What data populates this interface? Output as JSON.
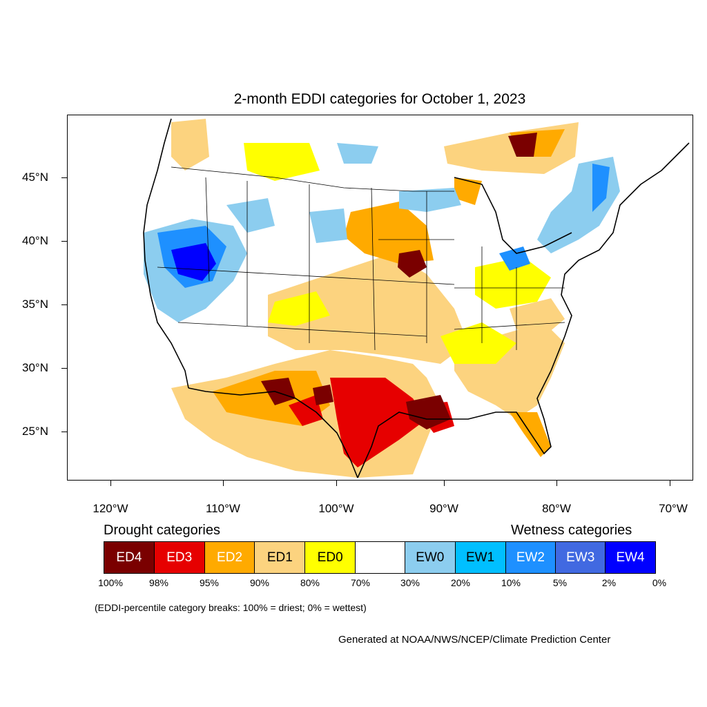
{
  "title": "2-month EDDI categories for October 1, 2023",
  "y_axis_labels": [
    "45°N",
    "40°N",
    "35°N",
    "30°N",
    "25°N"
  ],
  "x_axis_labels": [
    "120°W",
    "110°W",
    "100°W",
    "90°W",
    "80°W",
    "70°W"
  ],
  "legend": {
    "drought_heading": "Drought categories",
    "wetness_heading": "Wetness categories",
    "categories": [
      {
        "label": "ED4",
        "color": "#7a0000"
      },
      {
        "label": "ED3",
        "color": "#e60000"
      },
      {
        "label": "ED2",
        "color": "#ffaa00"
      },
      {
        "label": "ED1",
        "color": "#fcd37f"
      },
      {
        "label": "ED0",
        "color": "#ffff00"
      },
      {
        "label": "",
        "color": "#ffffff"
      },
      {
        "label": "EW0",
        "color": "#8ccdef"
      },
      {
        "label": "EW1",
        "color": "#00bfff"
      },
      {
        "label": "EW2",
        "color": "#1e90ff"
      },
      {
        "label": "EW3",
        "color": "#4169e1"
      },
      {
        "label": "EW4",
        "color": "#0000ff"
      }
    ],
    "percentiles": [
      "100%",
      "98%",
      "95%",
      "90%",
      "80%",
      "70%",
      "30%",
      "20%",
      "10%",
      "5%",
      "2%",
      "0%"
    ],
    "note": "(EDDI-percentile category breaks: 100% = driest; 0% = wettest)"
  },
  "credit": "Generated at NOAA/NWS/NCEP/Climate Prediction Center"
}
